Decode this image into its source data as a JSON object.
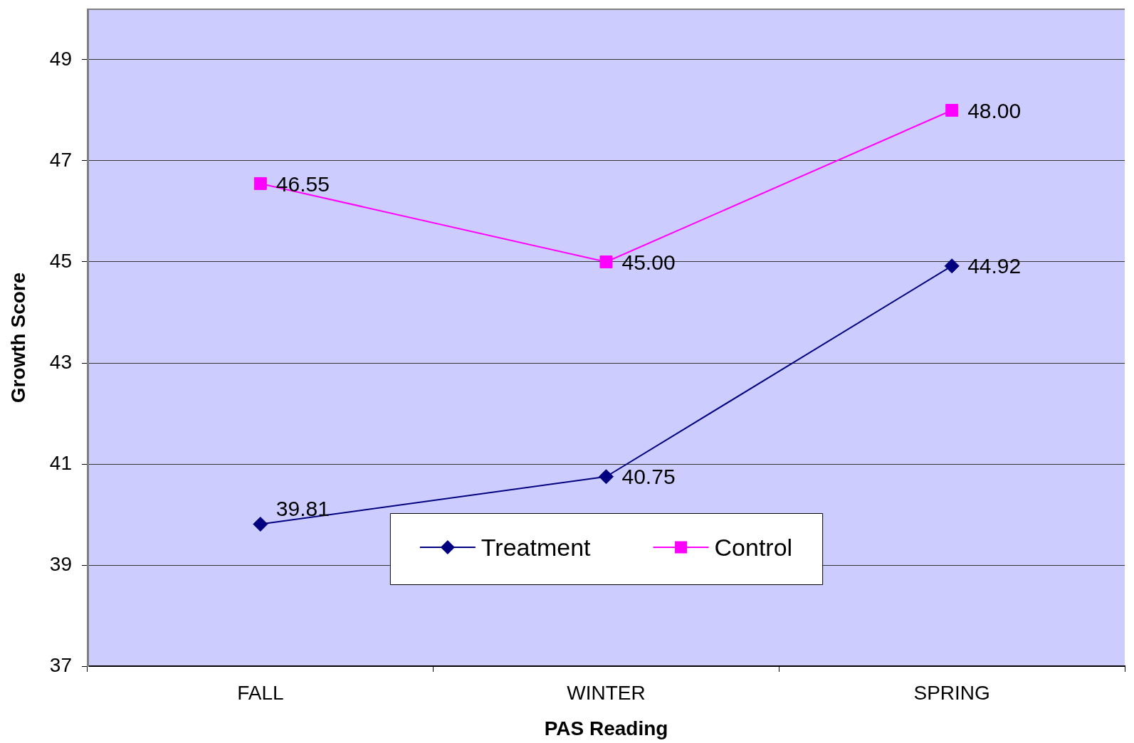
{
  "chart_data": {
    "type": "line",
    "xlabel": "PAS Reading",
    "ylabel": "Growth Score",
    "categories": [
      "FALL",
      "WINTER",
      "SPRING"
    ],
    "series": [
      {
        "name": "Treatment",
        "color": "#000080",
        "marker": "diamond",
        "values": [
          39.81,
          40.75,
          44.92
        ],
        "value_labels": [
          "39.81",
          "40.75",
          "44.92"
        ]
      },
      {
        "name": "Control",
        "color": "#ff00ff",
        "marker": "square",
        "values": [
          46.55,
          45.0,
          48.0
        ],
        "value_labels": [
          "46.55",
          "45.00",
          "48.00"
        ]
      }
    ],
    "ylim": [
      37,
      50
    ],
    "yticks": [
      37,
      39,
      41,
      43,
      45,
      47,
      49
    ],
    "grid": "y",
    "legend": "bottom",
    "line_style": "solid"
  }
}
